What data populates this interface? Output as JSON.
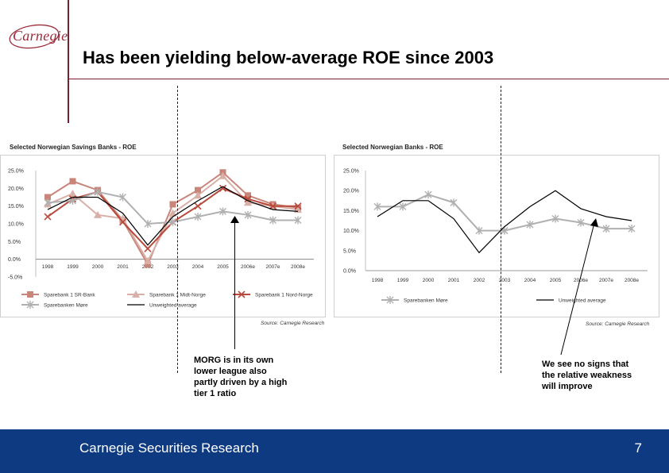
{
  "logo": {
    "text": "Carnegie"
  },
  "title": "Has been yielding below-average ROE since 2003",
  "footer": {
    "text": "Carnegie Securities Research",
    "page": "7"
  },
  "callouts": {
    "left": [
      "MORG is in its own",
      "lower league also",
      "partly driven by a high",
      "tier 1 ratio"
    ],
    "right": [
      "We see no signs that",
      "the relative weakness",
      "will improve"
    ]
  },
  "colors": {
    "accent": "#7a1f2b",
    "footer": "#0d3a80",
    "sr_bank": "#c8867a",
    "midt_norge": "#d9b0a8",
    "nord_norge": "#b84a3c",
    "more": "#b0b0b0",
    "unweighted": "#000000"
  },
  "chart_data": [
    {
      "type": "line",
      "title": "Selected Norwegian Savings Banks - ROE",
      "source": "Source: Carnegie Research",
      "categories": [
        "1998",
        "1999",
        "2000",
        "2001",
        "2002",
        "2003",
        "2004",
        "2005",
        "2006e",
        "2007e",
        "2008e"
      ],
      "ylim": [
        -5,
        25
      ],
      "yticks": [
        "-5.0%",
        "0.0%",
        "5.0%",
        "10.0%",
        "15.0%",
        "20.0%",
        "25.0%"
      ],
      "legend": "bottom",
      "series": [
        {
          "name": "Sparebank 1 SR-Bank",
          "marker": "square",
          "color": "#c8867a",
          "values": [
            17.5,
            22,
            19.5,
            11,
            -1.5,
            15.5,
            19.5,
            24.5,
            18,
            15.5,
            14.5
          ]
        },
        {
          "name": "Sparebank 1 Midt-Norge",
          "marker": "triangle",
          "color": "#d9b0a8",
          "values": [
            15.5,
            18.5,
            12.5,
            11.5,
            -0.5,
            13,
            18,
            23.5,
            16,
            15,
            14
          ]
        },
        {
          "name": "Sparebank 1 Nord-Norge",
          "marker": "x",
          "color": "#b84a3c",
          "values": [
            12,
            17,
            19,
            10.5,
            3,
            10.5,
            15,
            20,
            17,
            15,
            15
          ]
        },
        {
          "name": "Sparebanken Møre",
          "marker": "star",
          "color": "#b0b0b0",
          "values": [
            16,
            16.5,
            19,
            17.5,
            10,
            10.5,
            12,
            13.5,
            12.5,
            11,
            11
          ]
        },
        {
          "name": "Unweighted average",
          "marker": "none",
          "color": "#000000",
          "values": [
            14,
            17.5,
            17.5,
            13,
            4,
            12,
            16.5,
            20.5,
            16.5,
            14,
            13.5
          ]
        }
      ]
    },
    {
      "type": "line",
      "title": "Selected Norwegian Banks - ROE",
      "source": "Source: Carnegie Research",
      "categories": [
        "1998",
        "1999",
        "2000",
        "2001",
        "2002",
        "2003",
        "2004",
        "2005",
        "2006e",
        "2007e",
        "2008e"
      ],
      "ylim": [
        0,
        25
      ],
      "yticks": [
        "0.0%",
        "5.0%",
        "10.0%",
        "15.0%",
        "20.0%",
        "25.0%"
      ],
      "legend": "bottom",
      "series": [
        {
          "name": "Sparebanken Møre",
          "marker": "star",
          "color": "#b0b0b0",
          "values": [
            16,
            16,
            19,
            17,
            10,
            10,
            11.5,
            13,
            12,
            10.5,
            10.5
          ]
        },
        {
          "name": "Unweighted average",
          "marker": "none",
          "color": "#000000",
          "values": [
            13.5,
            17.5,
            17.5,
            13,
            4.5,
            11,
            16,
            20,
            15.5,
            13.5,
            12.5
          ]
        }
      ]
    }
  ]
}
